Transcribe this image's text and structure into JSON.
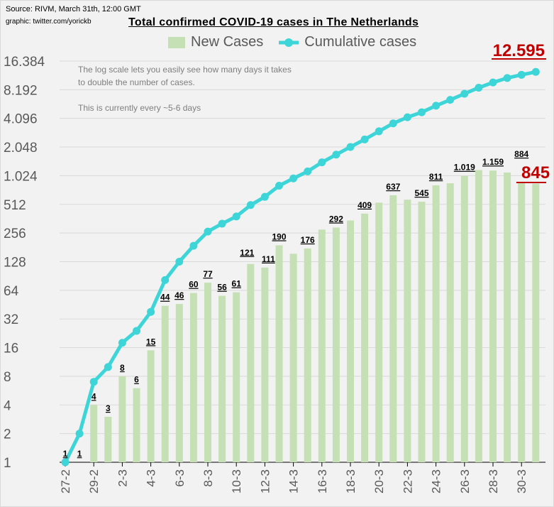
{
  "source": "Source: RIVM, March 31th, 12:00 GMT",
  "credit": "graphic: twitter.com/yorickb",
  "colors": {
    "bars": "#c5e0b4",
    "line": "#3dd5d8",
    "highlight": "#c00000",
    "grid": "#d9d9d9"
  },
  "chart_data": {
    "type": "bar+line",
    "title": "Total confirmed COVID-19 cases in The Netherlands",
    "legend": [
      "New Cases",
      "Cumulative cases"
    ],
    "legend_placement": "top",
    "yscale": "log2",
    "ylim": [
      1,
      16384
    ],
    "yticks": [
      1,
      2,
      4,
      8,
      16,
      32,
      64,
      128,
      256,
      512,
      1024,
      2048,
      4096,
      8192,
      16384
    ],
    "ytick_labels": [
      "1",
      "2",
      "4",
      "8",
      "16",
      "32",
      "64",
      "128",
      "256",
      "512",
      "1.024",
      "2.048",
      "4.096",
      "8.192",
      "16.384"
    ],
    "x": [
      "27-2",
      "28-2",
      "29-2",
      "1-3",
      "2-3",
      "3-3",
      "4-3",
      "5-3",
      "6-3",
      "7-3",
      "8-3",
      "9-3",
      "10-3",
      "11-3",
      "12-3",
      "13-3",
      "14-3",
      "15-3",
      "16-3",
      "17-3",
      "18-3",
      "19-3",
      "20-3",
      "21-3",
      "22-3",
      "23-3",
      "24-3",
      "25-3",
      "26-3",
      "27-3",
      "28-3",
      "29-3",
      "30-3",
      "31-3"
    ],
    "xtick_every": 2,
    "series": [
      {
        "name": "New Cases",
        "type": "bar",
        "values": [
          1,
          1,
          4,
          3,
          8,
          6,
          15,
          44,
          46,
          60,
          77,
          56,
          61,
          121,
          111,
          190,
          155,
          176,
          278,
          292,
          346,
          409,
          534,
          637,
          573,
          545,
          811,
          852,
          1019,
          1172,
          1159,
          1104,
          884,
          845
        ]
      },
      {
        "name": "Cumulative cases",
        "type": "line",
        "values": [
          1,
          2,
          7,
          10,
          18,
          24,
          38,
          82,
          128,
          188,
          265,
          321,
          382,
          503,
          614,
          804,
          959,
          1135,
          1413,
          1705,
          2051,
          2460,
          2994,
          3631,
          4204,
          4749,
          5560,
          6412,
          7431,
          8603,
          9762,
          10866,
          11750,
          12595
        ]
      }
    ],
    "data_labels": [
      {
        "i": 0,
        "text": "1"
      },
      {
        "i": 1,
        "text": "1"
      },
      {
        "i": 2,
        "text": "4"
      },
      {
        "i": 3,
        "text": "3"
      },
      {
        "i": 4,
        "text": "8"
      },
      {
        "i": 5,
        "text": "6"
      },
      {
        "i": 6,
        "text": "15"
      },
      {
        "i": 7,
        "text": "44"
      },
      {
        "i": 8,
        "text": "46"
      },
      {
        "i": 9,
        "text": "60"
      },
      {
        "i": 10,
        "text": "77"
      },
      {
        "i": 11,
        "text": "56"
      },
      {
        "i": 12,
        "text": "61"
      },
      {
        "i": 13,
        "text": "121"
      },
      {
        "i": 14,
        "text": "111"
      },
      {
        "i": 15,
        "text": "190"
      },
      {
        "i": 17,
        "text": "176"
      },
      {
        "i": 19,
        "text": "292"
      },
      {
        "i": 21,
        "text": "409"
      },
      {
        "i": 23,
        "text": "637"
      },
      {
        "i": 25,
        "text": "545"
      },
      {
        "i": 26,
        "text": "811"
      },
      {
        "i": 28,
        "text": "1.019"
      },
      {
        "i": 30,
        "text": "1.159"
      },
      {
        "i": 32,
        "text": "884"
      }
    ],
    "highlight_new": "845",
    "highlight_total": "12.595",
    "annotations": [
      "The log scale lets you easily see how many days it takes",
      "to double the number of cases.",
      "This is currently every ~5-6 days"
    ]
  }
}
